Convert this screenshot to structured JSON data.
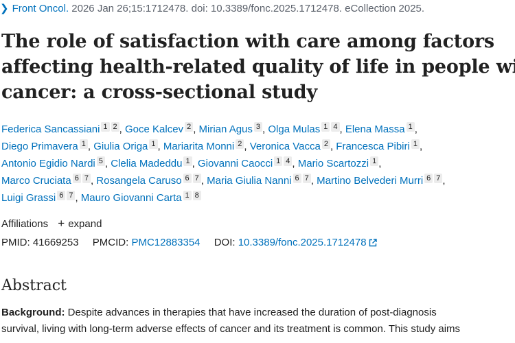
{
  "citation": {
    "chevron": "chevron-right-icon",
    "journal": "Front Oncol.",
    "details": " 2026 Jan 26;15:1712478. doi: 10.3389/fonc.2025.1712478. eCollection 2025."
  },
  "title": {
    "lines": [
      "The role of satisfaction with care among factors",
      "affecting health-related quality of life in people with",
      "cancer: a cross-sectional study"
    ]
  },
  "authors": [
    {
      "name": "Federica Sancassiani",
      "aff": [
        "1",
        "2"
      ]
    },
    {
      "name": "Goce Kalcev",
      "aff": [
        "2"
      ]
    },
    {
      "name": "Mirian Agus",
      "aff": [
        "3"
      ]
    },
    {
      "name": "Olga Mulas",
      "aff": [
        "1",
        "4"
      ]
    },
    {
      "name": "Elena Massa",
      "aff": [
        "1"
      ]
    },
    {
      "name": "Diego Primavera",
      "aff": [
        "1"
      ]
    },
    {
      "name": "Giulia Origa",
      "aff": [
        "1"
      ]
    },
    {
      "name": "Mariarita Monni",
      "aff": [
        "2"
      ]
    },
    {
      "name": "Veronica Vacca",
      "aff": [
        "2"
      ]
    },
    {
      "name": "Francesca Pibiri",
      "aff": [
        "1"
      ]
    },
    {
      "name": "Antonio Egidio Nardi",
      "aff": [
        "5"
      ]
    },
    {
      "name": "Clelia Madeddu",
      "aff": [
        "1"
      ]
    },
    {
      "name": "Giovanni Caocci",
      "aff": [
        "1",
        "4"
      ]
    },
    {
      "name": "Mario Scartozzi",
      "aff": [
        "1"
      ]
    },
    {
      "name": "Marco Cruciata",
      "aff": [
        "6",
        "7"
      ]
    },
    {
      "name": "Rosangela Caruso",
      "aff": [
        "6",
        "7"
      ]
    },
    {
      "name": "Maria Giulia Nanni",
      "aff": [
        "6",
        "7"
      ]
    },
    {
      "name": "Martino Belvederi Murri",
      "aff": [
        "6",
        "7"
      ]
    },
    {
      "name": "Luigi Grassi",
      "aff": [
        "6",
        "7"
      ]
    },
    {
      "name": "Mauro Giovanni Carta",
      "aff": [
        "1",
        "8"
      ]
    }
  ],
  "author_lines": [
    [
      0,
      1,
      2,
      3,
      4
    ],
    [
      5,
      6,
      7,
      8,
      9
    ],
    [
      10,
      11,
      12,
      13
    ],
    [
      14,
      15,
      16,
      17
    ],
    [
      18,
      19
    ]
  ],
  "separator": ",",
  "affiliations": {
    "label": "Affiliations",
    "expand_icon": "plus-icon",
    "expand_label": "expand"
  },
  "identifiers": {
    "pmid_label": "PMID:",
    "pmid": "41669253",
    "pmcid_label": "PMCID:",
    "pmcid": "PMC12883354",
    "doi_label": "DOI:",
    "doi": "10.3389/fonc.2025.1712478",
    "doi_icon": "external-link-icon"
  },
  "abstract": {
    "heading": "Abstract",
    "background_label": "Background:",
    "lines": [
      " Despite advances in therapies that have increased the duration of post-diagnosis",
      "survival, living with long-term adverse effects of cancer and its treatment is common. This study aims"
    ]
  },
  "colors": {
    "link": "#0071bc",
    "text": "#212121",
    "muted": "#5b616b",
    "badge": "#ececec"
  }
}
